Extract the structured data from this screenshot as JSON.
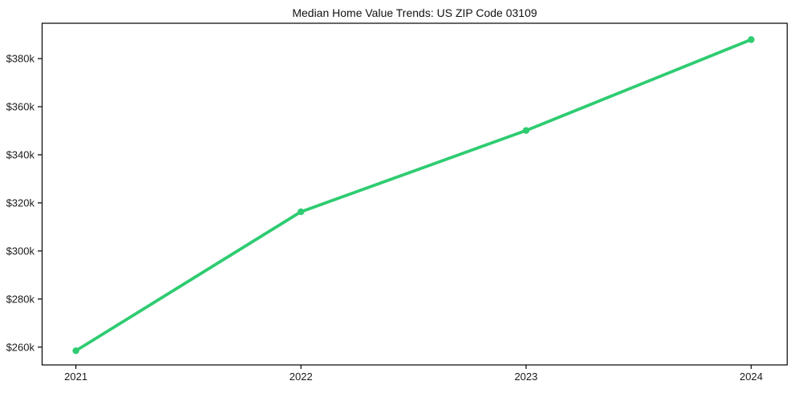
{
  "chart_data": {
    "type": "line",
    "title": "Median Home Value Trends: US ZIP Code 03109",
    "x": [
      2021,
      2022,
      2023,
      2024
    ],
    "values": [
      258500,
      316300,
      350100,
      387900
    ],
    "xlabel": "",
    "ylabel": "",
    "xlim": [
      2020.85,
      2024.16
    ],
    "ylim": [
      252600,
      394700
    ],
    "xticks": {
      "values": [
        2021,
        2022,
        2023,
        2024
      ],
      "labels": [
        "2021",
        "2022",
        "2023",
        "2024"
      ]
    },
    "yticks": {
      "values": [
        260000,
        280000,
        300000,
        320000,
        340000,
        360000,
        380000
      ],
      "labels": [
        "$260k",
        "$280k",
        "$300k",
        "$320k",
        "$340k",
        "$360k",
        "$380k"
      ]
    },
    "grid": false,
    "legend": "none",
    "marker": "circle",
    "line_color": "#2ecc71",
    "axis_color": "#000000",
    "tick_label_color": "#1a1a1a",
    "background_color": "#ffffff"
  }
}
